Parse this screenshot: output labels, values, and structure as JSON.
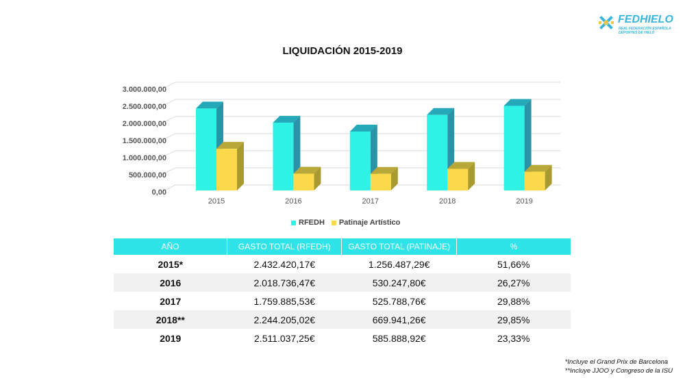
{
  "logo": {
    "name": "FEDHIELO",
    "subtitle_line1": "REAL FEDERACIÓN ESPAÑOLA",
    "subtitle_line2": "DEPORTES DE HIELO",
    "color": "#3ab6dc"
  },
  "chart_data": {
    "type": "bar",
    "title": "LIQUIDACIÓN 2015-2019",
    "categories": [
      "2015",
      "2016",
      "2017",
      "2018",
      "2019"
    ],
    "series": [
      {
        "name": "RFEDH",
        "values": [
          2432420.17,
          2018736.47,
          1759885.53,
          2244205.02,
          2511037.25
        ],
        "color": "#2ef2e6",
        "side_color": "#2a93a8",
        "top_color": "#25a8b8"
      },
      {
        "name": "Patinaje Artístico",
        "values": [
          1256487.29,
          530247.8,
          525788.76,
          669941.26,
          585888.92
        ],
        "color": "#fbd94a",
        "side_color": "#a89a2e",
        "top_color": "#b8a83a"
      }
    ],
    "ylim": [
      0,
      3000000
    ],
    "yticks": [
      "0,00",
      "500.000,00",
      "1.000.000,00",
      "1.500.000,00",
      "2.000.000,00",
      "2.500.000,00",
      "3.000.000,00"
    ],
    "grid": true,
    "legend": "bottom",
    "style": "3d-column"
  },
  "table": {
    "headers": [
      "AÑO",
      "GASTO TOTAL (RFEDH)",
      "GASTO TOTAL (PATINAJE)",
      "%"
    ],
    "rows": [
      {
        "year": "2015*",
        "rfedh": "2.432.420,17€",
        "patinaje": "1.256.487,29€",
        "pct": "51,66%"
      },
      {
        "year": "2016",
        "rfedh": "2.018.736,47€",
        "patinaje": "530.247,80€",
        "pct": "26,27%"
      },
      {
        "year": "2017",
        "rfedh": "1.759.885,53€",
        "patinaje": "525.788,76€",
        "pct": "29,88%"
      },
      {
        "year": "2018**",
        "rfedh": "2.244.205,02€",
        "patinaje": "669.941,26€",
        "pct": "29,85%"
      },
      {
        "year": "2019",
        "rfedh": "2.511.037,25€",
        "patinaje": "585.888,92€",
        "pct": "23,33%"
      }
    ],
    "header_color": "#2ee4e8"
  },
  "notes": {
    "note1": "*Incluye el Grand Prix de Barcelona",
    "note2": "**Incluye JJOO y Congreso de la ISU"
  }
}
